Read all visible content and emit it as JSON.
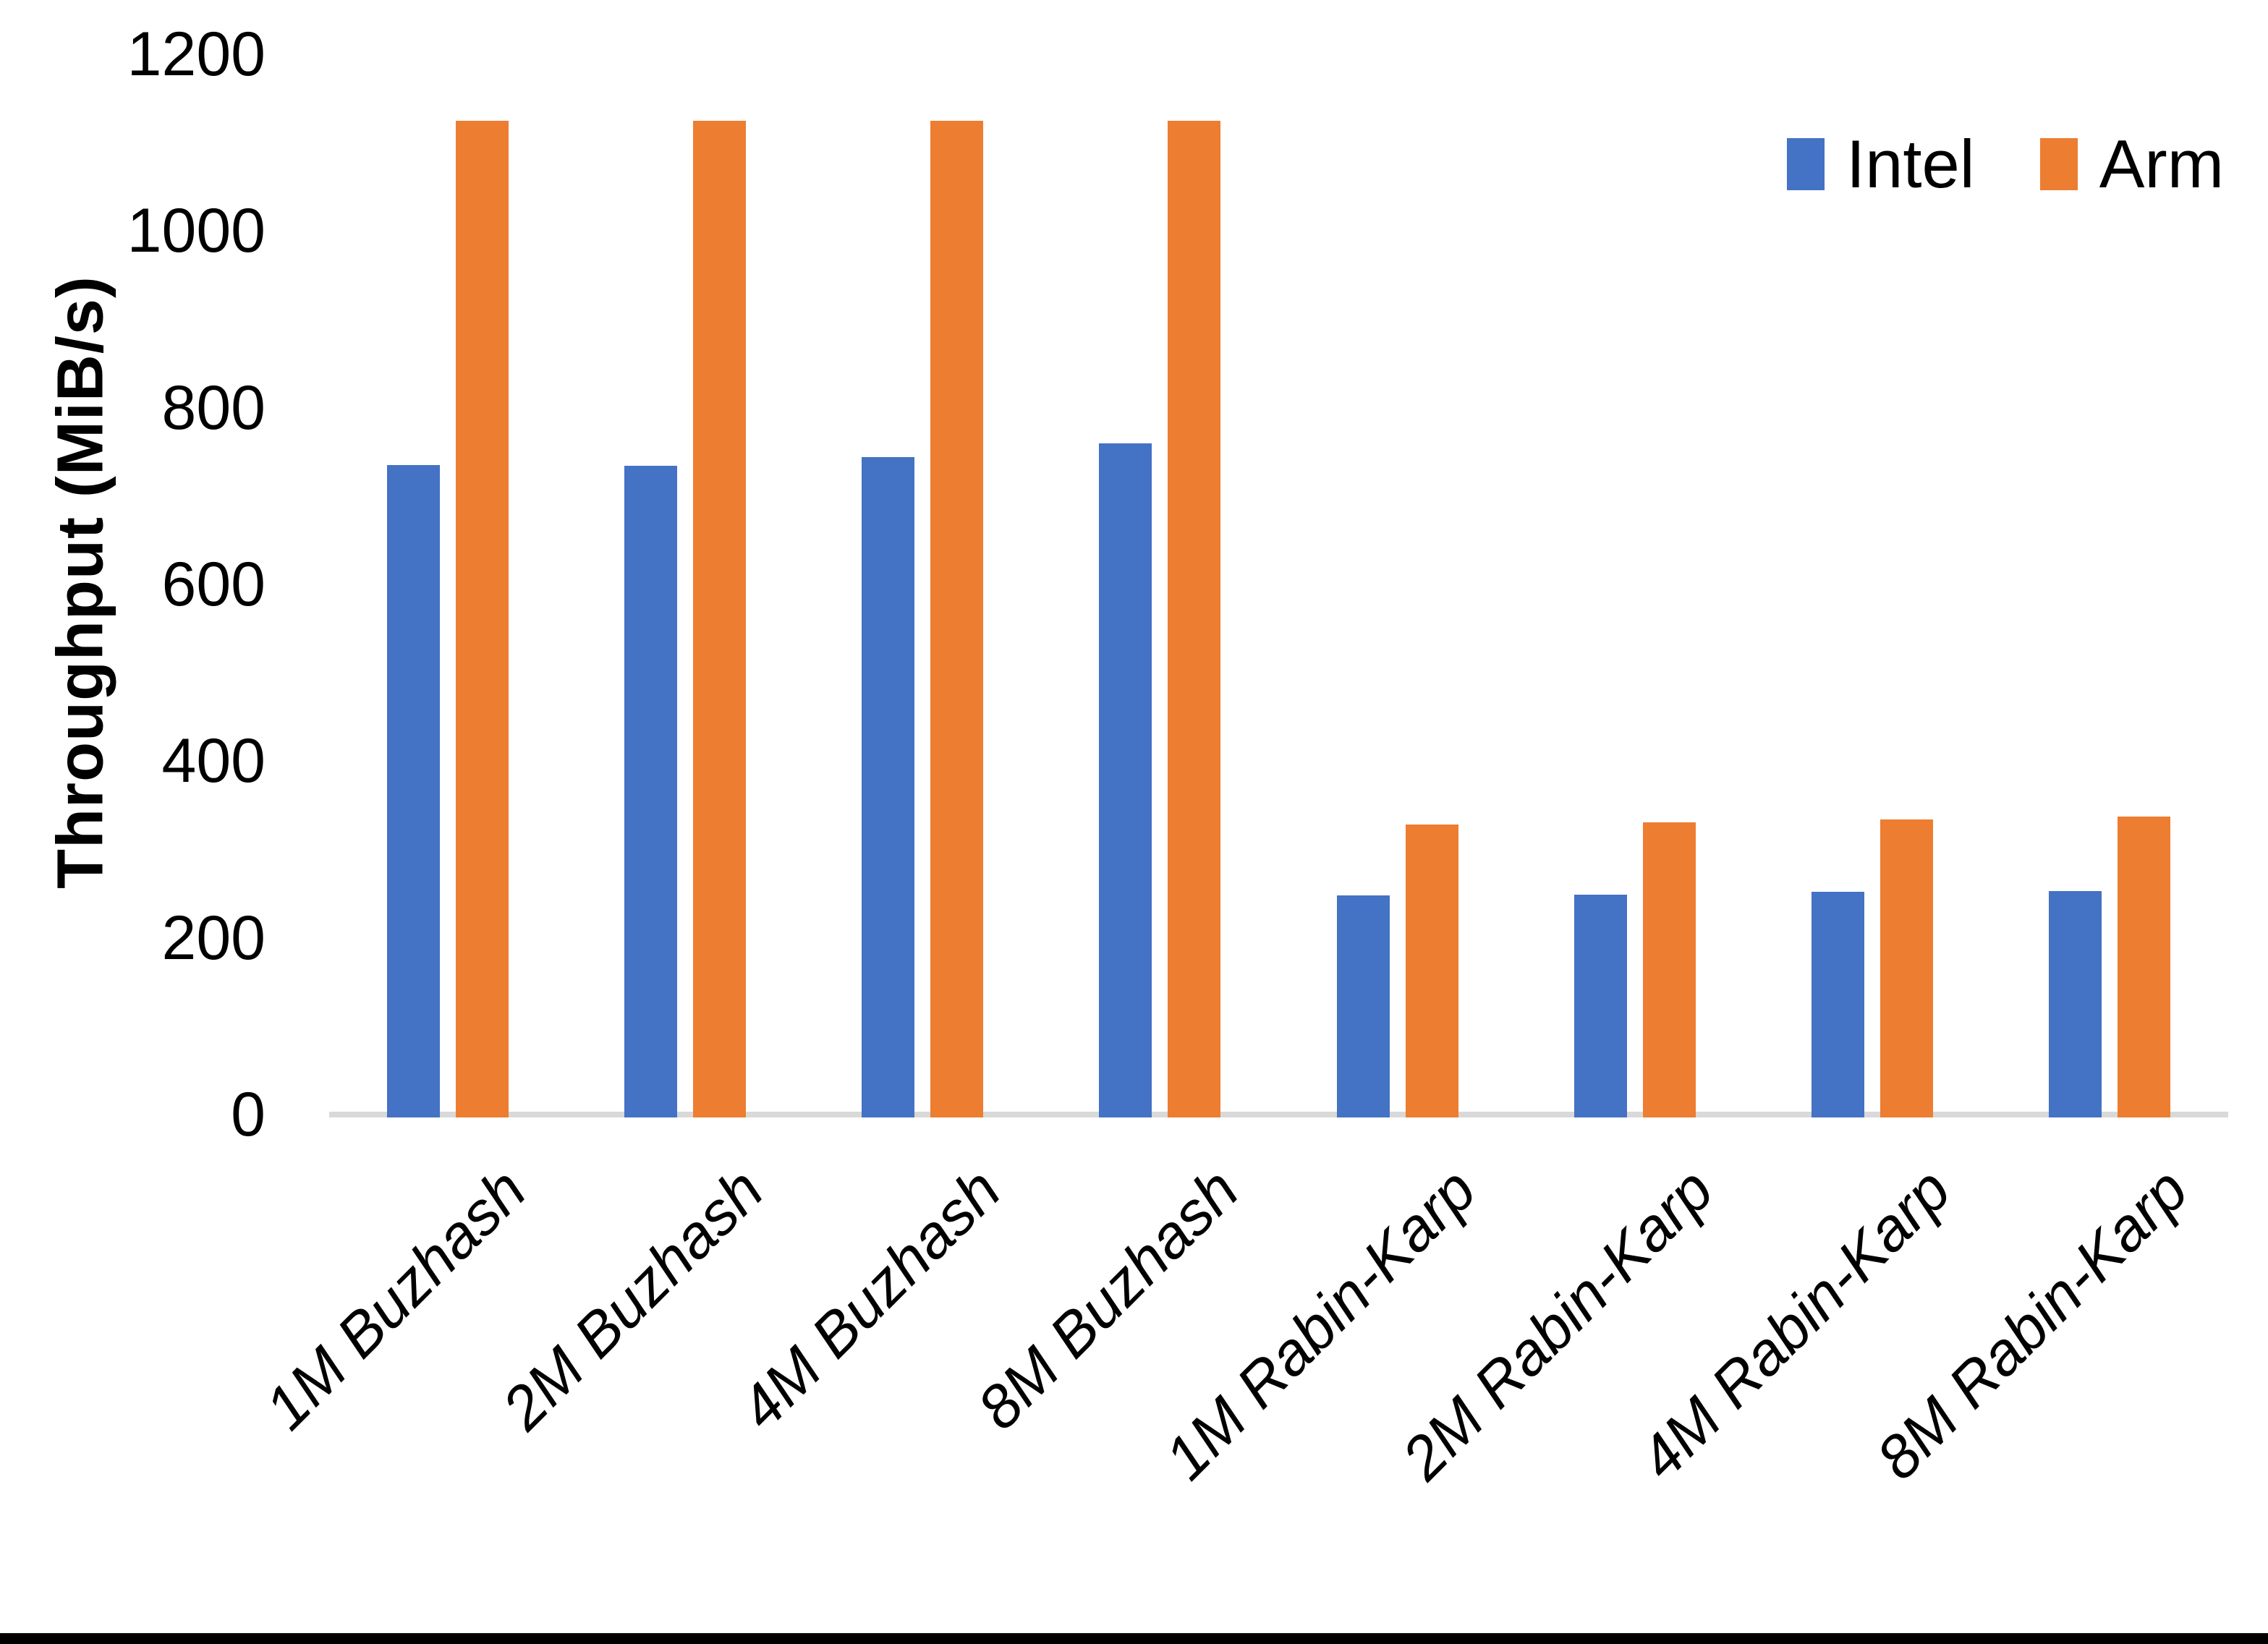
{
  "chart_data": {
    "type": "bar",
    "categories": [
      "1M Buzhash",
      "2M Buzhash",
      "4M Buzhash",
      "8M Buzhash",
      "1M Rabin-Karp",
      "2M Rabin-Karp",
      "4M Rabin-Karp",
      "8M Rabin-Karp"
    ],
    "series": [
      {
        "name": "Intel",
        "color": "#4472C4",
        "values": [
          735,
          734,
          744,
          760,
          248,
          249,
          252,
          253
        ]
      },
      {
        "name": "Arm",
        "color": "#ED7D31",
        "values": [
          1125,
          1125,
          1125,
          1125,
          328,
          331,
          334,
          337
        ]
      }
    ],
    "title": "",
    "xlabel": "",
    "ylabel": "Throughput (MiB/s)",
    "ylim": [
      0,
      1200
    ],
    "yticks": [
      0,
      200,
      400,
      600,
      800,
      1000,
      1200
    ],
    "grid": false,
    "legend_position": "top-right",
    "axis_line_color": "#d9d9d9",
    "text_color": "#000000"
  }
}
